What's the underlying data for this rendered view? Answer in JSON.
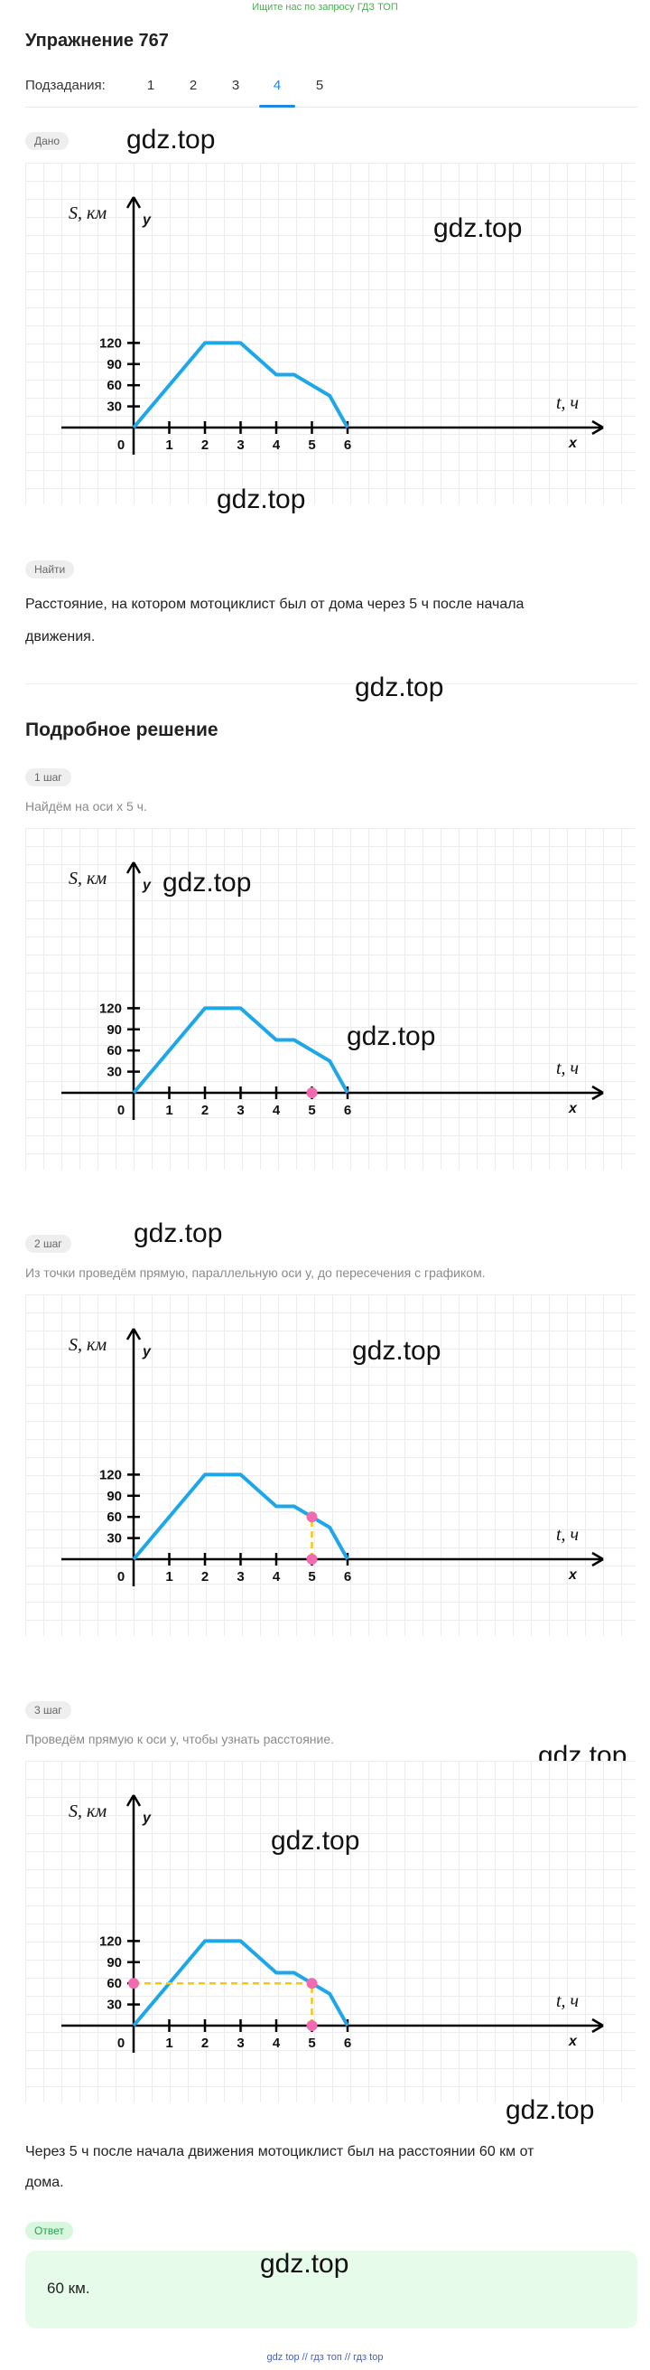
{
  "top_note": "Ищите нас по запросу ГДЗ ТОП",
  "title": "Упражнение 767",
  "subtasks": {
    "label": "Подзадания:",
    "items": [
      "1",
      "2",
      "3",
      "4",
      "5"
    ],
    "active": "4"
  },
  "given": {
    "badge": "Дано"
  },
  "find": {
    "badge": "Найти",
    "line1": "Расстояние, на котором мотоциклист был от дома через 5 ч после начала",
    "line2": "движения."
  },
  "solution": {
    "title": "Подробное решение",
    "steps": [
      {
        "badge": "1 шаг",
        "text": "Найдём на оси x 5 ч."
      },
      {
        "badge": "2 шаг",
        "text": "Из точки проведём прямую, параллельную оси y, до пересечения с графиком."
      },
      {
        "badge": "3 шаг",
        "text": "Проведём прямую к оси y, чтобы узнать расстояние."
      }
    ],
    "conclusion_line1": "Через 5 ч после начала движения мотоциклист был на расстоянии 60 км от",
    "conclusion_line2": "дома."
  },
  "answer": {
    "badge": "Ответ",
    "text": "60 км."
  },
  "watermark": "gdz.top",
  "footer": "gdz top // гдз топ // гдз top",
  "chart_data": {
    "type": "line",
    "xlabel": "t, ч",
    "ylabel": "S, км",
    "x_axis_letter": "x",
    "y_axis_letter": "y",
    "x_ticks": [
      "0",
      "1",
      "2",
      "3",
      "4",
      "5",
      "6"
    ],
    "y_ticks": [
      "30",
      "60",
      "90",
      "120"
    ],
    "x": [
      0,
      2,
      3,
      4,
      4.5,
      5,
      5.5,
      6
    ],
    "y": [
      0,
      120,
      120,
      75,
      75,
      60,
      45,
      0
    ],
    "marked_point": {
      "x": 5,
      "y": 60
    },
    "colors": {
      "line": "#1ea7e8",
      "marker": "#f06bb0",
      "guide": "#f5c518"
    }
  }
}
